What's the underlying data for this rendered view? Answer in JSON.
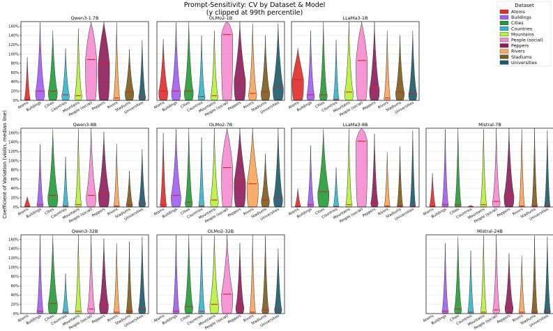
{
  "figure": {
    "title_line1": "Prompt-Sensitivity: CV by Dataset & Model",
    "title_line2": "(y clipped at 99th percentile)",
    "ylabel": "Coefficient of Variation (violin, median line)"
  },
  "legend": {
    "title": "Dataset",
    "placement": "top-right, outside plot area",
    "items": [
      {
        "name": "Atoms",
        "color": "#e12a2a"
      },
      {
        "name": "Buildings",
        "color": "#a15cf2"
      },
      {
        "name": "Cities",
        "color": "#249b36"
      },
      {
        "name": "Countries",
        "color": "#2fb7cc"
      },
      {
        "name": "Mountains",
        "color": "#b7f23a"
      },
      {
        "name": "People (social)",
        "color": "#f58bd0"
      },
      {
        "name": "Peppers",
        "color": "#8c1c5a"
      },
      {
        "name": "Rivers",
        "color": "#f7a55a"
      },
      {
        "name": "Stadiums",
        "color": "#7c5a1a"
      },
      {
        "name": "Universities",
        "color": "#1a5a6a"
      }
    ]
  },
  "chart_data": {
    "type": "violin",
    "title": "Prompt-Sensitivity: CV by Dataset & Model",
    "subtitle": "(y clipped at 99th percentile)",
    "ylabel": "Coefficient of Variation (violin, median line)",
    "categories": [
      "Atoms",
      "Buildings",
      "Cities",
      "Countries",
      "Mountains",
      "People (social)",
      "Peppers",
      "Rivers",
      "Stadiums",
      "Universities"
    ],
    "ylim": [
      0,
      170
    ],
    "yticks": [
      0,
      20,
      40,
      60,
      80,
      100,
      120,
      140,
      160
    ],
    "ytick_format": "percent",
    "grid": "horizontal",
    "panels": [
      {
        "title": "Qwen3-1.7B",
        "row": 0,
        "col": 0,
        "show_yticks": true,
        "medians": [
          2,
          20,
          20,
          12,
          10,
          88,
          80,
          5,
          18,
          8
        ],
        "maxes": [
          93,
          168,
          150,
          112,
          155,
          170,
          170,
          168,
          110,
          130
        ]
      },
      {
        "title": "OLMo2-1B",
        "row": 0,
        "col": 1,
        "show_yticks": false,
        "medians": [
          20,
          20,
          20,
          8,
          10,
          142,
          45,
          15,
          18,
          28
        ],
        "maxes": [
          132,
          168,
          170,
          140,
          150,
          170,
          170,
          166,
          140,
          166
        ]
      },
      {
        "title": "LLaMa3-1B",
        "row": 0,
        "col": 2,
        "show_yticks": false,
        "medians": [
          45,
          12,
          12,
          2,
          18,
          86,
          25,
          5,
          18,
          15
        ],
        "maxes": [
          113,
          150,
          170,
          130,
          170,
          170,
          170,
          150,
          140,
          150
        ]
      },
      {
        "title": "Qwen3-8B",
        "row": 1,
        "col": 0,
        "show_yticks": true,
        "medians": [
          1,
          5,
          25,
          2,
          5,
          25,
          30,
          2,
          5,
          8
        ],
        "maxes": [
          22,
          135,
          168,
          108,
          168,
          170,
          162,
          136,
          78,
          125
        ]
      },
      {
        "title": "OLMo2-7B",
        "row": 1,
        "col": 1,
        "show_yticks": false,
        "medians": [
          5,
          25,
          10,
          2,
          15,
          85,
          55,
          50,
          15,
          20
        ],
        "maxes": [
          160,
          168,
          170,
          150,
          170,
          170,
          170,
          170,
          115,
          170
        ]
      },
      {
        "title": "LLaMa3-8B",
        "row": 1,
        "col": 2,
        "show_yticks": false,
        "medians": [
          1,
          5,
          33,
          1,
          5,
          142,
          10,
          2,
          2,
          2
        ],
        "maxes": [
          40,
          133,
          168,
          85,
          168,
          170,
          158,
          118,
          130,
          165
        ]
      },
      {
        "title": "Mistral-7B",
        "row": 1,
        "col": 3,
        "show_yticks": false,
        "medians": [
          2,
          5,
          5,
          1,
          5,
          12,
          25,
          2,
          2,
          2
        ],
        "maxes": [
          73,
          168,
          170,
          4,
          168,
          170,
          170,
          168,
          170,
          165
        ]
      },
      {
        "title": "Qwen3-32B",
        "row": 2,
        "col": 0,
        "show_yticks": true,
        "medians": [
          0,
          5,
          22,
          3,
          5,
          10,
          20,
          3,
          5,
          10
        ],
        "maxes": [
          0,
          170,
          170,
          86,
          170,
          170,
          162,
          152,
          155,
          166
        ]
      },
      {
        "title": "OLMo2-32B",
        "row": 2,
        "col": 1,
        "show_yticks": false,
        "medians": [
          0,
          5,
          15,
          5,
          20,
          42,
          15,
          3,
          8,
          10
        ],
        "maxes": [
          0,
          170,
          170,
          168,
          168,
          170,
          152,
          170,
          168,
          140
        ]
      },
      {
        "title": "Mistral-24B",
        "row": 2,
        "col": 3,
        "show_yticks": false,
        "medians": [
          0,
          5,
          10,
          3,
          3,
          8,
          15,
          3,
          3,
          5
        ],
        "maxes": [
          0,
          152,
          166,
          136,
          168,
          170,
          130,
          125,
          168,
          166
        ]
      }
    ]
  }
}
